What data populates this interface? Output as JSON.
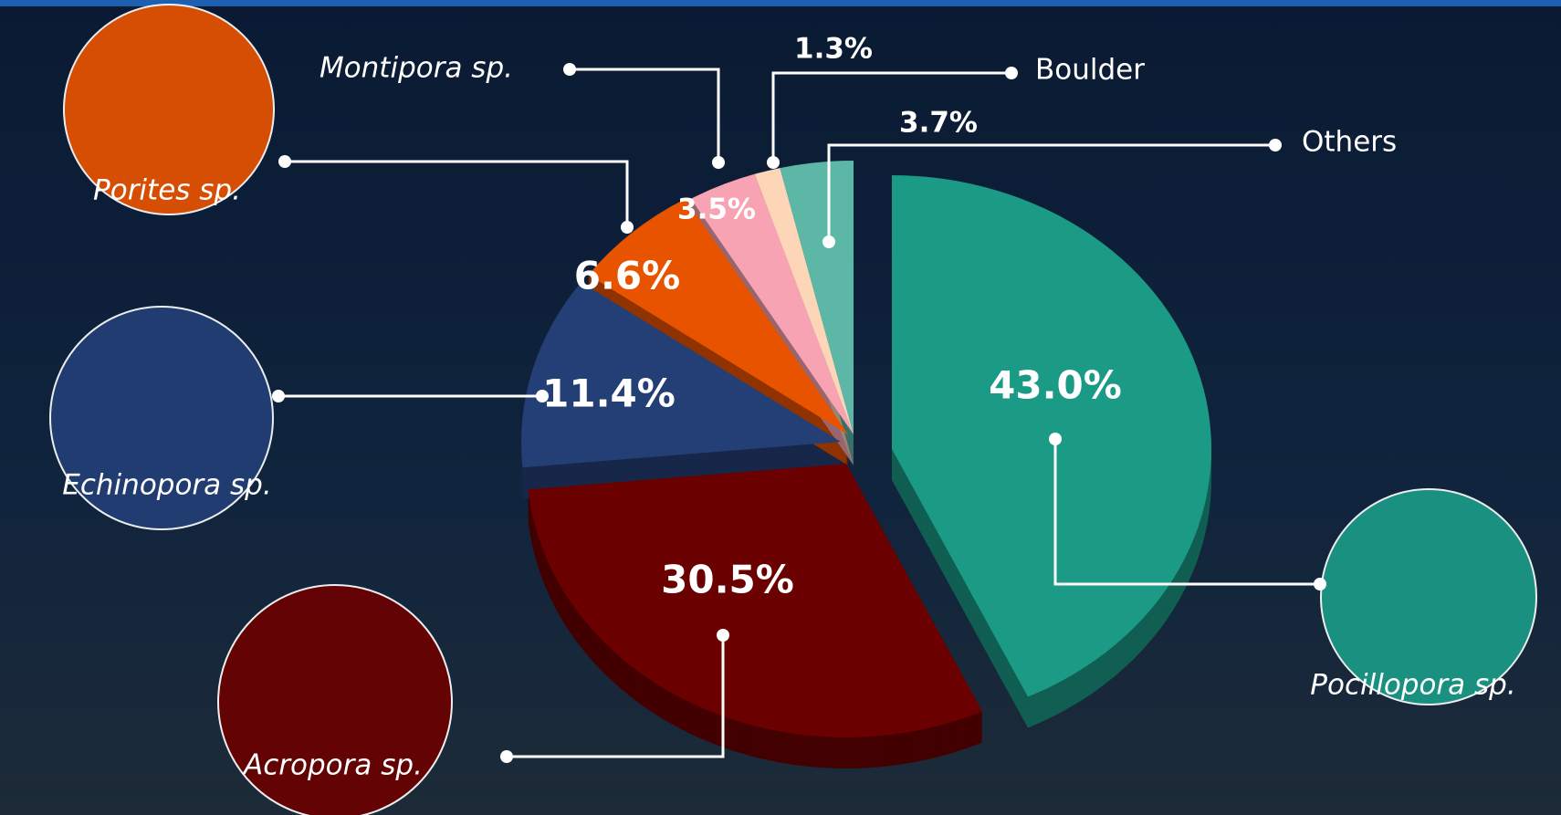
{
  "chart_data": {
    "type": "pie",
    "categories": [
      "Pocillopora sp.",
      "Acropora sp.",
      "Echinopora sp.",
      "Porites sp.",
      "Montipora sp.",
      "Boulder",
      "Others"
    ],
    "values": [
      43.0,
      30.5,
      11.4,
      6.6,
      3.5,
      1.3,
      3.7
    ],
    "value_labels": [
      "43.0%",
      "30.5%",
      "11.4%",
      "6.6%",
      "3.5%",
      "1.3%",
      "3.7%"
    ],
    "colors": [
      "#1b9a86",
      "#6a0000",
      "#233f75",
      "#e85300",
      "#f7a3b3",
      "#fcd6b6",
      "#5cb7a7"
    ]
  }
}
